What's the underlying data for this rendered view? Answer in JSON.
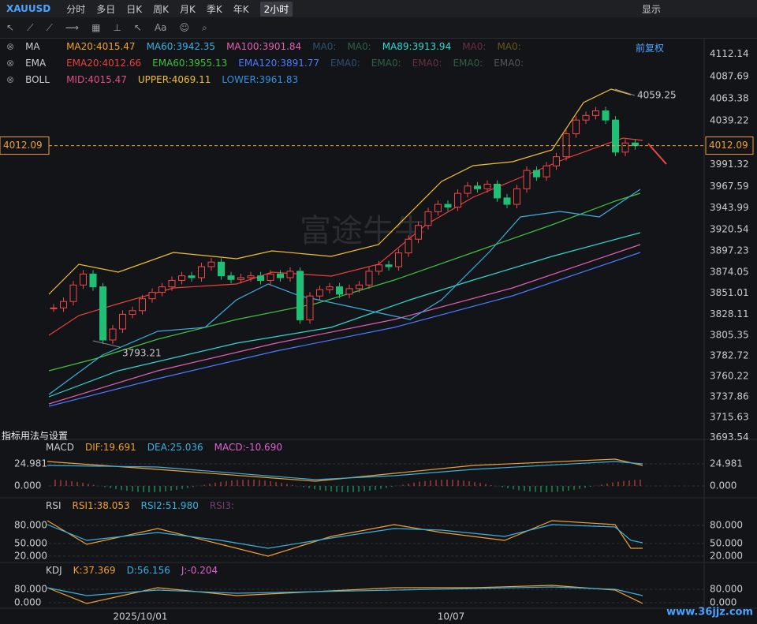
{
  "toolbar": {
    "symbol": "XAUUSD",
    "periods": [
      "分时",
      "多日",
      "日K",
      "周K",
      "月K",
      "季K",
      "年K"
    ],
    "active_period": "2小时",
    "display": "显示"
  },
  "adjust": "前复权",
  "main_legends": [
    {
      "label": "MA",
      "items": [
        {
          "text": "MA20:4015.47",
          "color": "#f0a030"
        },
        {
          "text": "MA60:3942.35",
          "color": "#3ab0e0"
        },
        {
          "text": "MA100:3901.84",
          "color": "#e060b0"
        },
        {
          "text": "MA0:",
          "color": "#2f4f70"
        },
        {
          "text": "MA0:",
          "color": "#2f5f45"
        },
        {
          "text": "MA89:3913.94",
          "color": "#30d8d0"
        },
        {
          "text": "MA0:",
          "color": "#663040"
        },
        {
          "text": "MA0:",
          "color": "#665520"
        }
      ]
    },
    {
      "label": "EMA",
      "items": [
        {
          "text": "EMA20:4012.66",
          "color": "#e84040"
        },
        {
          "text": "EMA60:3955.13",
          "color": "#40c040"
        },
        {
          "text": "EMA120:3891.77",
          "color": "#4a7aff"
        },
        {
          "text": "EMA0:",
          "color": "#2f4f70"
        },
        {
          "text": "EMA0:",
          "color": "#2f5f45"
        },
        {
          "text": "EMA0:",
          "color": "#663040"
        },
        {
          "text": "EMA0:",
          "color": "#2f5f45"
        },
        {
          "text": "EMA0:",
          "color": "#555555"
        }
      ]
    },
    {
      "label": "BOLL",
      "items": [
        {
          "text": "MID:4015.47",
          "color": "#e05080"
        },
        {
          "text": "UPPER:4069.11",
          "color": "#f0c030"
        },
        {
          "text": "LOWER:3961.83",
          "color": "#3090e0"
        }
      ]
    }
  ],
  "price_ticks": [
    4112.14,
    4087.69,
    4063.38,
    4039.22,
    3991.32,
    3967.59,
    3943.99,
    3920.54,
    3897.23,
    3874.05,
    3851.01,
    3828.11,
    3805.35,
    3782.72,
    3760.22,
    3737.86,
    3715.63,
    3693.54
  ],
  "current_price": 4012.09,
  "annotations": {
    "high": "4059.25",
    "low": "3793.21"
  },
  "watermark": "富途牛牛",
  "note": "指标用法与设置",
  "candles": {
    "closes": [
      3835,
      3842,
      3860,
      3872,
      3858,
      3800,
      3812,
      3828,
      3832,
      3845,
      3852,
      3858,
      3865,
      3870,
      3868,
      3880,
      3885,
      3870,
      3866,
      3868,
      3870,
      3865,
      3872,
      3868,
      3875,
      3822,
      3848,
      3855,
      3858,
      3850,
      3856,
      3860,
      3875,
      3882,
      3880,
      3895,
      3910,
      3925,
      3940,
      3948,
      3945,
      3960,
      3968,
      3965,
      3970,
      3955,
      3948,
      3965,
      3985,
      3978,
      3990,
      4000,
      4025,
      4040,
      4045,
      4050,
      4040,
      4005,
      4015,
      4012
    ]
  },
  "panels": [
    {
      "name": "MACD",
      "items": [
        {
          "text": "DIF:19.691",
          "color": "#f0a030"
        },
        {
          "text": "DEA:25.036",
          "color": "#3ab0e0"
        },
        {
          "text": "MACD:-10.690",
          "color": "#e060d0"
        }
      ],
      "axis": [
        "24.981",
        "0.000"
      ]
    },
    {
      "name": "RSI",
      "items": [
        {
          "text": "RSI1:38.053",
          "color": "#f0a030"
        },
        {
          "text": "RSI2:51.980",
          "color": "#3ab0e0"
        },
        {
          "text": "RSI3:",
          "color": "#704070"
        }
      ],
      "axis": [
        "80.000",
        "50.000",
        "20.000"
      ]
    },
    {
      "name": "KDJ",
      "items": [
        {
          "text": "K:37.369",
          "color": "#f0a030"
        },
        {
          "text": "D:56.156",
          "color": "#3ab0e0"
        },
        {
          "text": "J:-0.204",
          "color": "#e060d0"
        }
      ],
      "axis": [
        "80.000",
        "0.000"
      ]
    }
  ],
  "x_axis": [
    "2025/10/01",
    "10/07"
  ],
  "site": "www.36jjz.com"
}
